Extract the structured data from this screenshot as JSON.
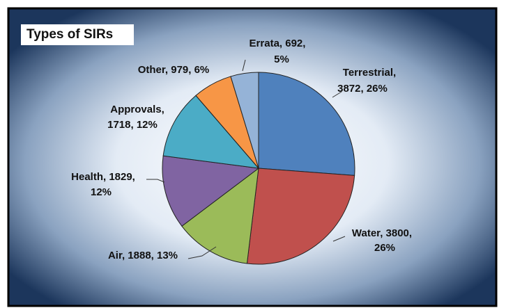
{
  "chart_data": {
    "type": "pie",
    "title": "Types of SIRs",
    "values": [
      3872,
      3800,
      1888,
      1829,
      1718,
      979,
      692
    ],
    "value_labels": [
      [
        "Terrestrial,",
        "3872, 26%"
      ],
      [
        "Water, 3800,",
        "26%"
      ],
      [
        "Air, 1888, 13%"
      ],
      [
        "Health, 1829,",
        "12%"
      ],
      [
        "Approvals,",
        "1718, 12%"
      ],
      [
        "Other, 979, 6%"
      ],
      [
        "Errata, 692,",
        "5%"
      ]
    ],
    "colors": [
      "#4f81bd",
      "#c0504d",
      "#9bbb59",
      "#8064a2",
      "#4bacc6",
      "#f79646",
      "#95b3d7"
    ]
  }
}
